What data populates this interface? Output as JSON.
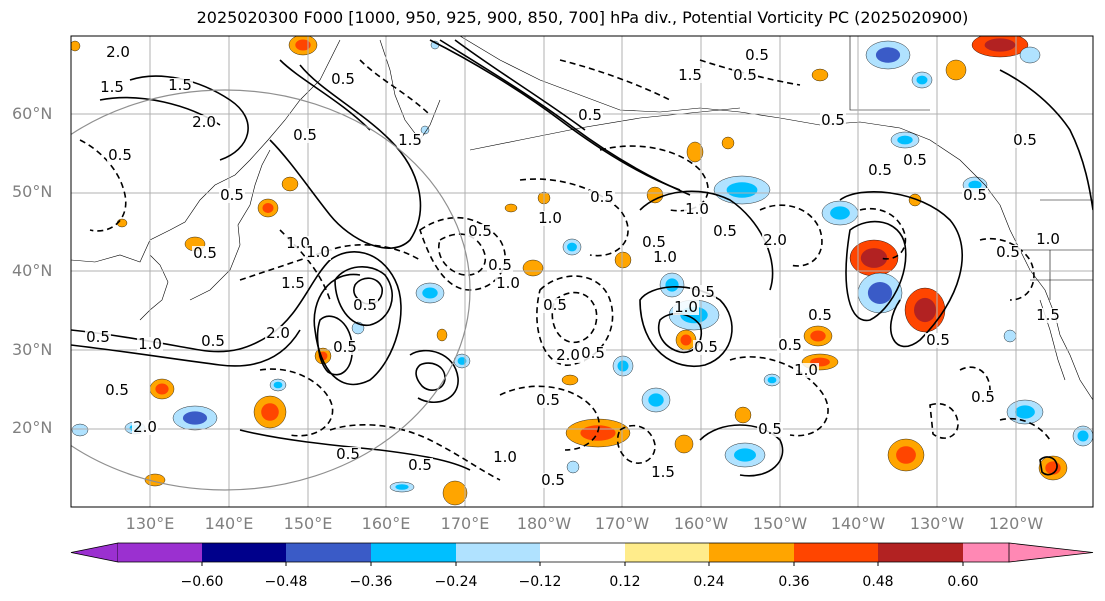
{
  "title": "2025020300 F000 [1000, 950, 925, 900, 850, 700] hPa div., Potential Vorticity PC (2025020900)",
  "lat_labels": [
    "60°N",
    "50°N",
    "40°N",
    "30°N",
    "20°N"
  ],
  "lon_labels": [
    "130°E",
    "140°E",
    "150°E",
    "160°E",
    "170°E",
    "180°W",
    "170°W",
    "160°W",
    "150°W",
    "140°W",
    "130°W",
    "120°W"
  ],
  "colorbar": {
    "colors": [
      "#9b30d0",
      "#00008b",
      "#3a5bc7",
      "#00bfff",
      "#b0e2ff",
      "#ffffff",
      "#ffec8b",
      "#ffa500",
      "#ff4500",
      "#b22222",
      "#ff88b4"
    ],
    "tick_labels": [
      "−0.60",
      "−0.48",
      "−0.36",
      "−0.24",
      "−0.12",
      "0.12",
      "0.24",
      "0.36",
      "0.48",
      "0.60"
    ],
    "extend": "both"
  },
  "contour_labels": [
    "2.0",
    "1.5",
    "1.5",
    "2.0",
    "0.5",
    "0.5",
    "0.5",
    "1.0",
    "1.5",
    "2.0",
    "0.5",
    "0.5",
    "1.0",
    "0.5",
    "2.0",
    "0.5",
    "0.5",
    "1.0",
    "0.5",
    "0.5",
    "1.5",
    "0.5",
    "0.5",
    "1.0",
    "0.5",
    "0.5",
    "1.0",
    "0.5",
    "2.0",
    "0.5",
    "0.5",
    "0.5",
    "1.0",
    "0.5",
    "1.0",
    "0.5",
    "1.0",
    "0.5",
    "2.0",
    "0.5",
    "0.5",
    "0.5",
    "0.5",
    "0.5",
    "1.0",
    "0.5",
    "1.5",
    "0.5",
    "0.5",
    "0.5",
    "1.0",
    "0.5",
    "1.5",
    "0.5",
    "0.5",
    "1.5",
    "0.5",
    "1.0",
    "0.5",
    "0.5",
    "0.5"
  ]
}
